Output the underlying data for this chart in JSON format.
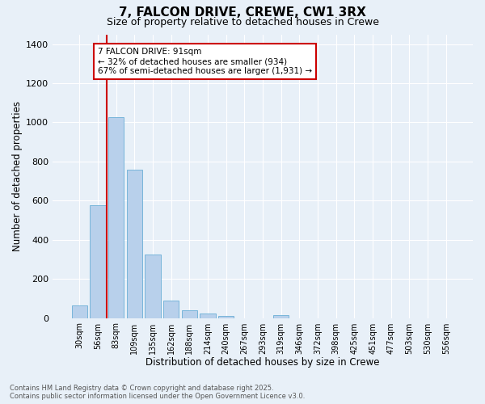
{
  "title_line1": "7, FALCON DRIVE, CREWE, CW1 3RX",
  "title_line2": "Size of property relative to detached houses in Crewe",
  "xlabel": "Distribution of detached houses by size in Crewe",
  "ylabel": "Number of detached properties",
  "categories": [
    "30sqm",
    "56sqm",
    "83sqm",
    "109sqm",
    "135sqm",
    "162sqm",
    "188sqm",
    "214sqm",
    "240sqm",
    "267sqm",
    "293sqm",
    "319sqm",
    "346sqm",
    "372sqm",
    "398sqm",
    "425sqm",
    "451sqm",
    "477sqm",
    "503sqm",
    "530sqm",
    "556sqm"
  ],
  "values": [
    65,
    578,
    1025,
    758,
    325,
    90,
    38,
    22,
    12,
    0,
    0,
    15,
    0,
    0,
    0,
    0,
    0,
    0,
    0,
    0,
    0
  ],
  "bar_color": "#b8d0eb",
  "bar_edge_color": "#6aaed6",
  "background_color": "#e8f0f8",
  "grid_color": "#ffffff",
  "vline_x": 1.5,
  "vline_color": "#cc0000",
  "annotation_line1": "7 FALCON DRIVE: 91sqm",
  "annotation_line2": "← 32% of detached houses are smaller (934)",
  "annotation_line3": "67% of semi-detached houses are larger (1,931) →",
  "annotation_box_color": "#cc0000",
  "ylim": [
    0,
    1450
  ],
  "yticks": [
    0,
    200,
    400,
    600,
    800,
    1000,
    1200,
    1400
  ],
  "footnote": "Contains HM Land Registry data © Crown copyright and database right 2025.\nContains public sector information licensed under the Open Government Licence v3.0."
}
